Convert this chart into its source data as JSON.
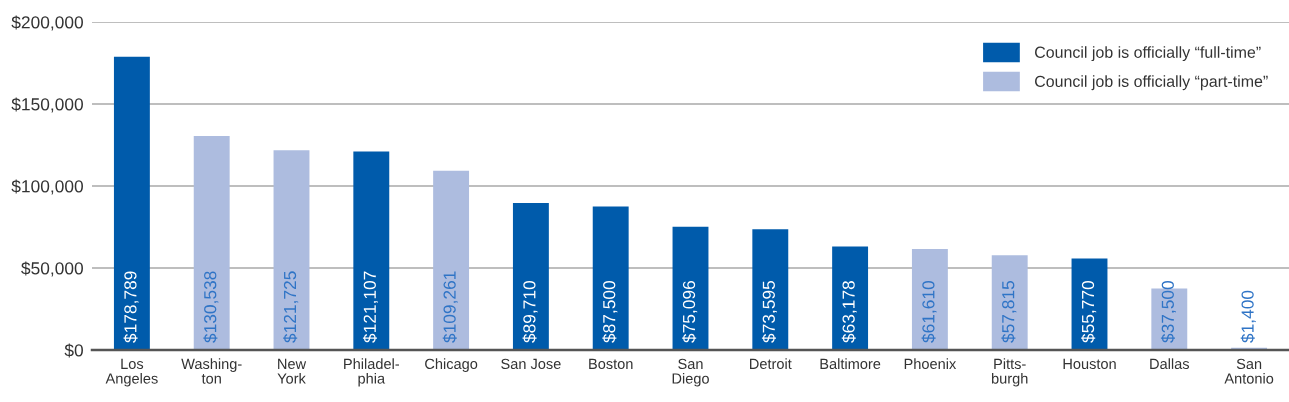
{
  "chart_data": {
    "type": "bar",
    "categories": [
      "Los\nAngeles",
      "Washing-\nton",
      "New\nYork",
      "Philadel-\nphia",
      "Chicago",
      "San Jose",
      "Boston",
      "San\nDiego",
      "Detroit",
      "Baltimore",
      "Phoenix",
      "Pitts-\nburgh",
      "Houston",
      "Dallas",
      "San\nAntonio"
    ],
    "series": [
      {
        "name": "Council job is officially “full-time”",
        "color": "#005bab",
        "values": [
          178789,
          null,
          null,
          121107,
          null,
          89710,
          87500,
          75096,
          73595,
          63178,
          null,
          null,
          55770,
          null,
          null
        ],
        "value_labels": [
          "$178,789",
          null,
          null,
          "$121,107",
          null,
          "$89,710",
          "$87,500",
          "$75,096",
          "$73,595",
          "$63,178",
          null,
          null,
          "$55,770",
          null,
          null
        ]
      },
      {
        "name": "Council job is officially “part-time”",
        "color": "#adbcdf",
        "values": [
          null,
          130538,
          121725,
          null,
          109261,
          null,
          null,
          null,
          null,
          null,
          61610,
          57815,
          null,
          37500,
          1400
        ],
        "value_labels": [
          null,
          "$130,538",
          "$121,725",
          null,
          "$109,261",
          null,
          null,
          null,
          null,
          null,
          "$61,610",
          "$57,815",
          null,
          "$37,500",
          "$1,400"
        ]
      }
    ],
    "stacked": true,
    "ylim": [
      0,
      200000
    ],
    "yticks": [
      {
        "value": 0,
        "label": "$0"
      },
      {
        "value": 50000,
        "label": "$50,000"
      },
      {
        "value": 100000,
        "label": "$100,000"
      },
      {
        "value": 150000,
        "label": "$150,000"
      },
      {
        "value": 200000,
        "label": "$200,000"
      }
    ],
    "grid": "y",
    "legend": "top right"
  }
}
